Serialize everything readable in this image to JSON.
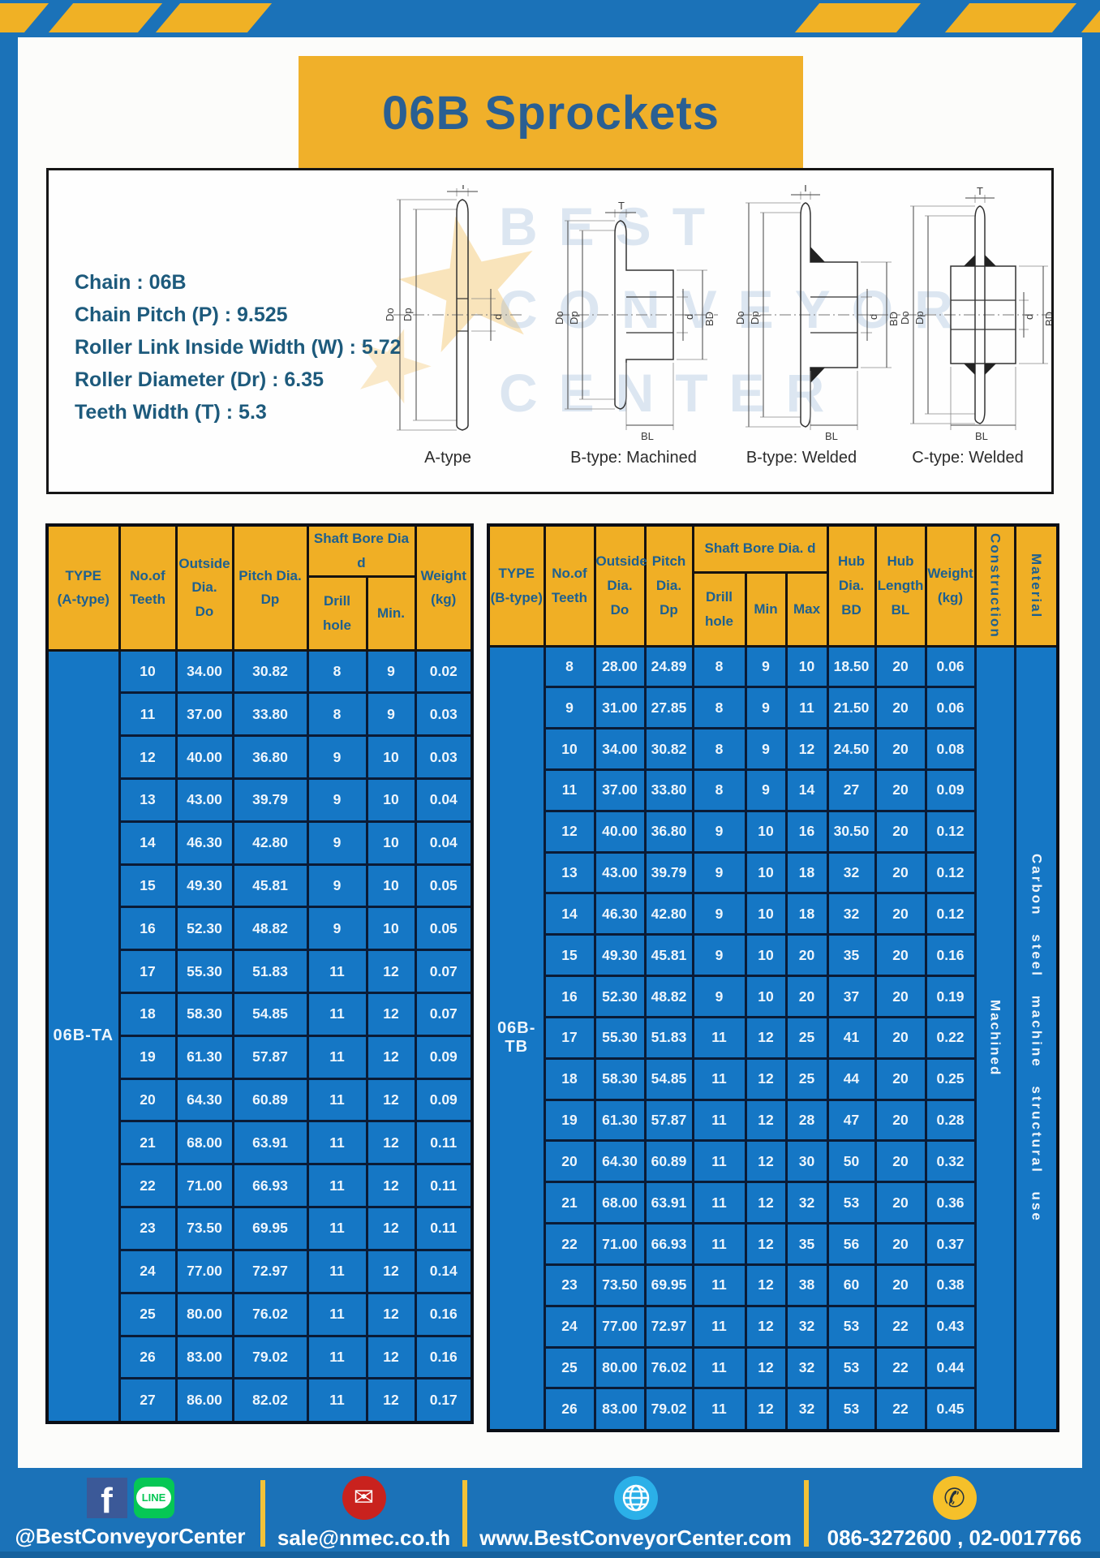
{
  "title": "06B Sprockets",
  "specs": {
    "lines": [
      "Chain : 06B",
      "Chain Pitch (P) : 9.525",
      "Roller Link Inside Width (W) : 5.72",
      "Roller Diameter (Dr) : 6.35",
      "Teeth Width (T) : 5.3"
    ]
  },
  "diagram": {
    "labels": [
      "A-type",
      "B-type: Machined",
      "B-type: Welded",
      "C-type: Welded"
    ],
    "dims": {
      "t": "T",
      "do": "Do",
      "dp": "Dp",
      "d": "d",
      "bd": "BD",
      "bl": "BL"
    },
    "watermark": "BEST\nCONVEYOR\nCENTER"
  },
  "table_a": {
    "headers": {
      "type": "TYPE\n(A-type)",
      "teeth": "No.of\nTeeth",
      "outside": "Outside\nDia.\nDo",
      "pitch": "Pitch Dia.\nDp",
      "shaft_bore": "Shaft Bore Dia d",
      "drill": "Drill hole",
      "min": "Min.",
      "weight": "Weight\n(kg)"
    },
    "type_label": "06B-TA",
    "rows": [
      [
        "10",
        "34.00",
        "30.82",
        "8",
        "9",
        "0.02"
      ],
      [
        "11",
        "37.00",
        "33.80",
        "8",
        "9",
        "0.03"
      ],
      [
        "12",
        "40.00",
        "36.80",
        "9",
        "10",
        "0.03"
      ],
      [
        "13",
        "43.00",
        "39.79",
        "9",
        "10",
        "0.04"
      ],
      [
        "14",
        "46.30",
        "42.80",
        "9",
        "10",
        "0.04"
      ],
      [
        "15",
        "49.30",
        "45.81",
        "9",
        "10",
        "0.05"
      ],
      [
        "16",
        "52.30",
        "48.82",
        "9",
        "10",
        "0.05"
      ],
      [
        "17",
        "55.30",
        "51.83",
        "11",
        "12",
        "0.07"
      ],
      [
        "18",
        "58.30",
        "54.85",
        "11",
        "12",
        "0.07"
      ],
      [
        "19",
        "61.30",
        "57.87",
        "11",
        "12",
        "0.09"
      ],
      [
        "20",
        "64.30",
        "60.89",
        "11",
        "12",
        "0.09"
      ],
      [
        "21",
        "68.00",
        "63.91",
        "11",
        "12",
        "0.11"
      ],
      [
        "22",
        "71.00",
        "66.93",
        "11",
        "12",
        "0.11"
      ],
      [
        "23",
        "73.50",
        "69.95",
        "11",
        "12",
        "0.11"
      ],
      [
        "24",
        "77.00",
        "72.97",
        "11",
        "12",
        "0.14"
      ],
      [
        "25",
        "80.00",
        "76.02",
        "11",
        "12",
        "0.16"
      ],
      [
        "26",
        "83.00",
        "79.02",
        "11",
        "12",
        "0.16"
      ],
      [
        "27",
        "86.00",
        "82.02",
        "11",
        "12",
        "0.17"
      ]
    ]
  },
  "table_b": {
    "headers": {
      "type": "TYPE\n(B-type)",
      "teeth": "No.of\nTeeth",
      "outside": "Outside\nDia.\nDo",
      "pitch": "Pitch\nDia.\nDp",
      "shaft_bore": "Shaft Bore Dia. d",
      "drill": "Drill hole",
      "min": "Min",
      "max": "Max",
      "hub_dia": "Hub\nDia.\nBD",
      "hub_len": "Hub\nLength\nBL",
      "weight": "Weight\n(kg)",
      "construction": "Construction",
      "material": "Material"
    },
    "type_label": "06B-TB",
    "construction_value": "Machined",
    "material_value": "Carbon steel machine structural use",
    "rows": [
      [
        "8",
        "28.00",
        "24.89",
        "8",
        "9",
        "10",
        "18.50",
        "20",
        "0.06"
      ],
      [
        "9",
        "31.00",
        "27.85",
        "8",
        "9",
        "11",
        "21.50",
        "20",
        "0.06"
      ],
      [
        "10",
        "34.00",
        "30.82",
        "8",
        "9",
        "12",
        "24.50",
        "20",
        "0.08"
      ],
      [
        "11",
        "37.00",
        "33.80",
        "8",
        "9",
        "14",
        "27",
        "20",
        "0.09"
      ],
      [
        "12",
        "40.00",
        "36.80",
        "9",
        "10",
        "16",
        "30.50",
        "20",
        "0.12"
      ],
      [
        "13",
        "43.00",
        "39.79",
        "9",
        "10",
        "18",
        "32",
        "20",
        "0.12"
      ],
      [
        "14",
        "46.30",
        "42.80",
        "9",
        "10",
        "18",
        "32",
        "20",
        "0.12"
      ],
      [
        "15",
        "49.30",
        "45.81",
        "9",
        "10",
        "20",
        "35",
        "20",
        "0.16"
      ],
      [
        "16",
        "52.30",
        "48.82",
        "9",
        "10",
        "20",
        "37",
        "20",
        "0.19"
      ],
      [
        "17",
        "55.30",
        "51.83",
        "11",
        "12",
        "25",
        "41",
        "20",
        "0.22"
      ],
      [
        "18",
        "58.30",
        "54.85",
        "11",
        "12",
        "25",
        "44",
        "20",
        "0.25"
      ],
      [
        "19",
        "61.30",
        "57.87",
        "11",
        "12",
        "28",
        "47",
        "20",
        "0.28"
      ],
      [
        "20",
        "64.30",
        "60.89",
        "11",
        "12",
        "30",
        "50",
        "20",
        "0.32"
      ],
      [
        "21",
        "68.00",
        "63.91",
        "11",
        "12",
        "32",
        "53",
        "20",
        "0.36"
      ],
      [
        "22",
        "71.00",
        "66.93",
        "11",
        "12",
        "35",
        "56",
        "20",
        "0.37"
      ],
      [
        "23",
        "73.50",
        "69.95",
        "11",
        "12",
        "38",
        "60",
        "20",
        "0.38"
      ],
      [
        "24",
        "77.00",
        "72.97",
        "11",
        "12",
        "32",
        "53",
        "22",
        "0.43"
      ],
      [
        "25",
        "80.00",
        "76.02",
        "11",
        "12",
        "32",
        "53",
        "22",
        "0.44"
      ],
      [
        "26",
        "83.00",
        "79.02",
        "11",
        "12",
        "32",
        "53",
        "22",
        "0.45"
      ]
    ]
  },
  "footer": {
    "fb_letter": "f",
    "line_text": "LINE",
    "social": "@BestConveyorCenter",
    "email": "sale@nmec.co.th",
    "website": "www.BestConveyorCenter.com",
    "phones": "086-3272600 , 02-0017766"
  },
  "colors": {
    "page_blue": "#1b72b8",
    "gold": "#f0b02a",
    "cell_blue": "#1577c5",
    "header_text": "#1d6090",
    "spec_text": "#1d5a7c"
  }
}
